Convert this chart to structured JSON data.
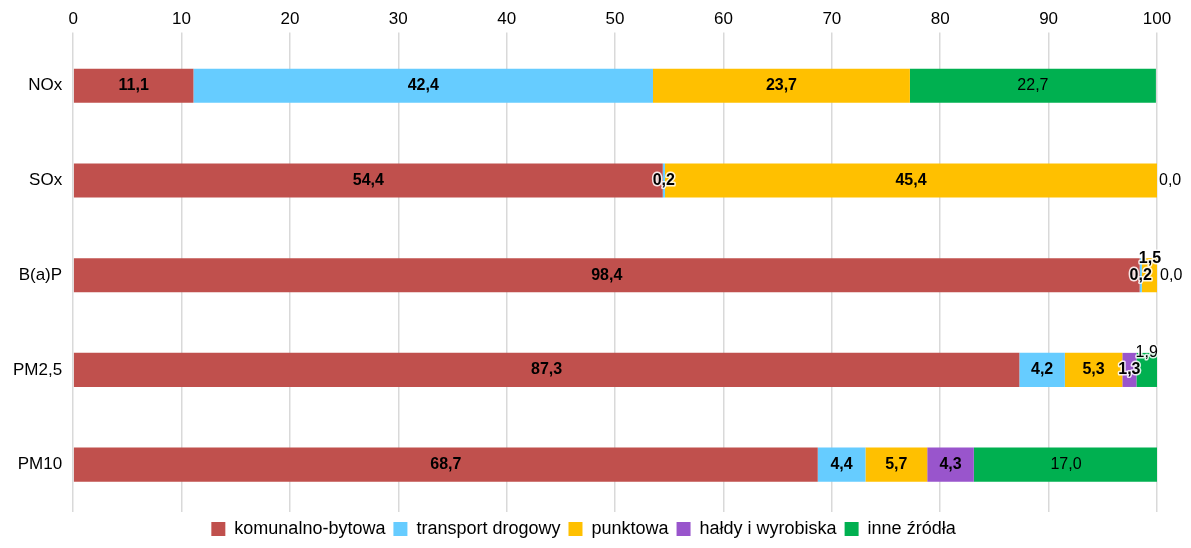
{
  "chart_data": {
    "type": "bar",
    "orientation": "horizontal",
    "stacked": true,
    "categories": [
      "NOx",
      "SOx",
      "B(a)P",
      "PM2,5",
      "PM10"
    ],
    "series": [
      {
        "name": "komunalno-bytowa",
        "color": "#c0504d",
        "values": [
          11.1,
          54.4,
          98.4,
          87.3,
          68.7
        ],
        "value_labels": [
          "11,1",
          "54,4",
          "98,4",
          "87,3",
          "68,7"
        ]
      },
      {
        "name": "transport drogowy",
        "color": "#66ccff",
        "values": [
          42.4,
          0.2,
          0.2,
          4.2,
          4.4
        ],
        "value_labels": [
          "42,4",
          "0,2",
          "0,2",
          "4,2",
          "4,4"
        ]
      },
      {
        "name": "punktowa",
        "color": "#ffc000",
        "values": [
          23.7,
          45.4,
          1.5,
          5.3,
          5.7
        ],
        "value_labels": [
          "23,7",
          "45,4",
          "1,5",
          "5,3",
          "5,7"
        ]
      },
      {
        "name": "hałdy i wyrobiska",
        "color": "#9955cc",
        "values": [
          null,
          null,
          null,
          1.3,
          4.3
        ],
        "value_labels": [
          null,
          null,
          null,
          "1,3",
          "4,3"
        ]
      },
      {
        "name": "inne źródła",
        "color": "#00b050",
        "values": [
          22.7,
          0.0,
          0.0,
          1.9,
          17.0
        ],
        "value_labels": [
          "22,7",
          "0,0",
          "0,0",
          "1,9",
          "17,0"
        ]
      }
    ],
    "xlim": [
      0,
      100
    ],
    "xticks": [
      0,
      10,
      20,
      30,
      40,
      50,
      60,
      70,
      80,
      90,
      100
    ],
    "grid": "x",
    "legend": "bottom"
  }
}
